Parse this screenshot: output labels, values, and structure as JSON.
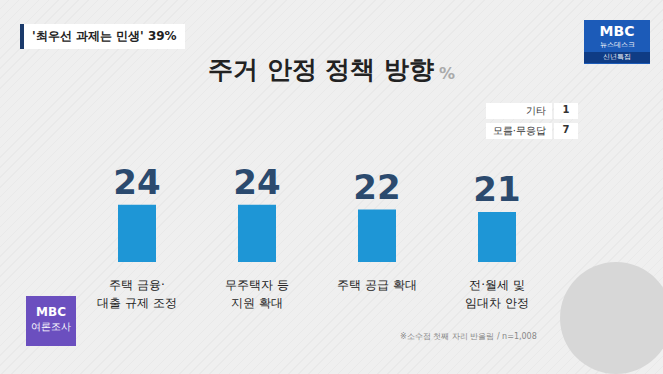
{
  "chart_data": {
    "type": "bar",
    "title": "주거 안정 정책 방향",
    "unit": "%",
    "categories": [
      "주택 금융·\n대출 규제 조정",
      "무주택자 등\n지원 확대",
      "주택 공급 확대",
      "전·월세 및\n임대차 안정"
    ],
    "values": [
      24,
      24,
      22,
      21
    ],
    "color": "#1e96d6",
    "ylim": [
      0,
      47
    ],
    "data_labels": true,
    "tick_labels": "x",
    "grid": false
  },
  "headline": "'최우선 과제는 민생' 39%",
  "other_responses": [
    {
      "label": "기타",
      "value": 1
    },
    {
      "label": "모름·무응답",
      "value": 7
    }
  ],
  "footnote": "※소수점 첫째 자리 반올림 / n=1,008",
  "logo": {
    "brand": "MBC",
    "program": "뉴스데스크",
    "special": "신년특집"
  },
  "poll_logo": {
    "brand": "MBC",
    "text": "여론조사"
  }
}
